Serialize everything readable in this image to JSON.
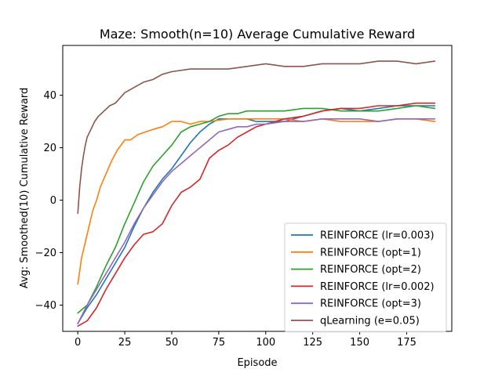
{
  "chart_data": {
    "type": "line",
    "title": "Maze: Smooth(n=10) Average Cumulative Reward",
    "xlabel": "Episode",
    "ylabel": "Avg: Smoothed(10) Cumulative Reward",
    "xlim": [
      -8,
      199
    ],
    "ylim": [
      -50,
      59
    ],
    "xticks": [
      0,
      25,
      50,
      75,
      100,
      125,
      150,
      175
    ],
    "yticks": [
      -40,
      -20,
      0,
      20,
      40
    ],
    "grid": false,
    "legend_position": "lower-right",
    "series": [
      {
        "name": "REINFORCE (lr=0.003)",
        "color": "#1f77b4",
        "x": [
          0,
          5,
          10,
          15,
          20,
          25,
          30,
          35,
          40,
          45,
          50,
          55,
          60,
          65,
          70,
          75,
          80,
          85,
          90,
          95,
          100,
          110,
          120,
          130,
          140,
          150,
          160,
          170,
          180,
          190
        ],
        "y": [
          -47,
          -41,
          -36,
          -30,
          -24,
          -18,
          -10,
          -3,
          3,
          8,
          12,
          17,
          22,
          26,
          29,
          31,
          31,
          31,
          31,
          30,
          30,
          30,
          32,
          34,
          35,
          34,
          35,
          36,
          36,
          36
        ]
      },
      {
        "name": "REINFORCE (opt=1)",
        "color": "#ff7f0e",
        "x": [
          0,
          2,
          4,
          6,
          8,
          10,
          12,
          15,
          18,
          21,
          25,
          28,
          32,
          36,
          40,
          45,
          50,
          55,
          60,
          65,
          70,
          80,
          90,
          100,
          110,
          120,
          130,
          140,
          150,
          160,
          170,
          180,
          190
        ],
        "y": [
          -32,
          -22,
          -16,
          -10,
          -4,
          0,
          5,
          10,
          15,
          19,
          23,
          23,
          25,
          26,
          27,
          28,
          30,
          30,
          29,
          30,
          30,
          31,
          31,
          31,
          31,
          30,
          31,
          30,
          30,
          30,
          31,
          31,
          30
        ]
      },
      {
        "name": "REINFORCE (opt=2)",
        "color": "#2ca02c",
        "x": [
          0,
          5,
          10,
          15,
          20,
          25,
          30,
          35,
          40,
          45,
          50,
          55,
          60,
          65,
          70,
          75,
          80,
          85,
          90,
          95,
          100,
          110,
          120,
          130,
          140,
          150,
          160,
          170,
          180,
          190
        ],
        "y": [
          -43,
          -40,
          -33,
          -25,
          -18,
          -9,
          -1,
          7,
          13,
          17,
          21,
          26,
          28,
          29,
          30,
          32,
          33,
          33,
          34,
          34,
          34,
          34,
          35,
          35,
          34,
          34,
          34,
          35,
          36,
          35
        ]
      },
      {
        "name": "REINFORCE (lr=0.002)",
        "color": "#d62728",
        "x": [
          0,
          5,
          10,
          15,
          20,
          25,
          30,
          35,
          40,
          45,
          50,
          55,
          60,
          65,
          70,
          75,
          80,
          85,
          90,
          95,
          100,
          110,
          120,
          130,
          140,
          150,
          160,
          170,
          180,
          190
        ],
        "y": [
          -48,
          -46,
          -41,
          -34,
          -28,
          -22,
          -17,
          -13,
          -12,
          -9,
          -2,
          3,
          5,
          8,
          16,
          19,
          21,
          24,
          26,
          28,
          29,
          31,
          32,
          34,
          35,
          35,
          36,
          36,
          37,
          37
        ]
      },
      {
        "name": "REINFORCE (opt=3)",
        "color": "#9467bd",
        "x": [
          0,
          5,
          10,
          15,
          20,
          25,
          30,
          35,
          40,
          45,
          50,
          55,
          60,
          65,
          70,
          75,
          80,
          85,
          90,
          95,
          100,
          110,
          120,
          130,
          140,
          150,
          160,
          170,
          180,
          190
        ],
        "y": [
          -47,
          -40,
          -34,
          -28,
          -22,
          -16,
          -9,
          -3,
          2,
          7,
          11,
          14,
          17,
          20,
          23,
          26,
          27,
          28,
          28,
          29,
          29,
          30,
          30,
          31,
          31,
          31,
          30,
          31,
          31,
          31
        ]
      },
      {
        "name": "qLearning (e=0.05)",
        "color": "#8c564b",
        "x": [
          0,
          1,
          2,
          3,
          4,
          5,
          7,
          9,
          11,
          14,
          17,
          20,
          25,
          30,
          35,
          40,
          45,
          50,
          60,
          70,
          80,
          90,
          100,
          110,
          120,
          130,
          140,
          150,
          160,
          170,
          180,
          190
        ],
        "y": [
          -5,
          5,
          12,
          17,
          21,
          24,
          27,
          30,
          32,
          34,
          36,
          37,
          41,
          43,
          45,
          46,
          48,
          49,
          50,
          50,
          50,
          51,
          52,
          51,
          51,
          52,
          52,
          52,
          53,
          53,
          52,
          53
        ]
      }
    ]
  }
}
